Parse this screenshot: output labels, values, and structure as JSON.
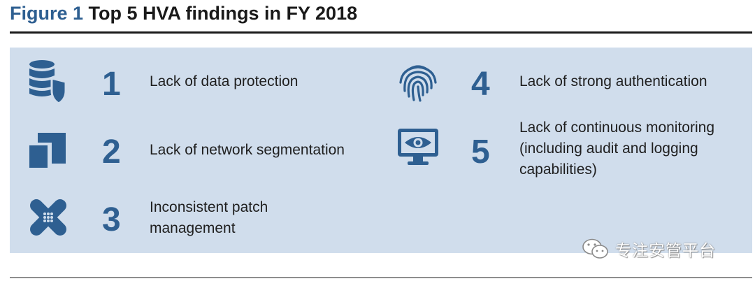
{
  "figure": {
    "label": "Figure 1",
    "title": "Top 5 HVA findings in FY 2018"
  },
  "findings": [
    {
      "number": "1",
      "label": "Lack of data protection",
      "icon": "database-shield-icon"
    },
    {
      "number": "2",
      "label": "Lack of network segmentation",
      "icon": "network-segment-icon"
    },
    {
      "number": "3",
      "label": "Inconsistent patch management",
      "icon": "bandage-patch-icon"
    },
    {
      "number": "4",
      "label": "Lack of strong authentication",
      "icon": "fingerprint-icon"
    },
    {
      "number": "5",
      "label": "Lack of continuous monitoring (including audit and logging capabilities)",
      "icon": "monitor-eye-icon"
    }
  ],
  "watermark": {
    "text": "专注安管平台",
    "icon": "wechat-icon"
  },
  "colors": {
    "accent": "#2e5f91",
    "panel_background": "#d0ddec",
    "text": "#1f1f1f"
  }
}
